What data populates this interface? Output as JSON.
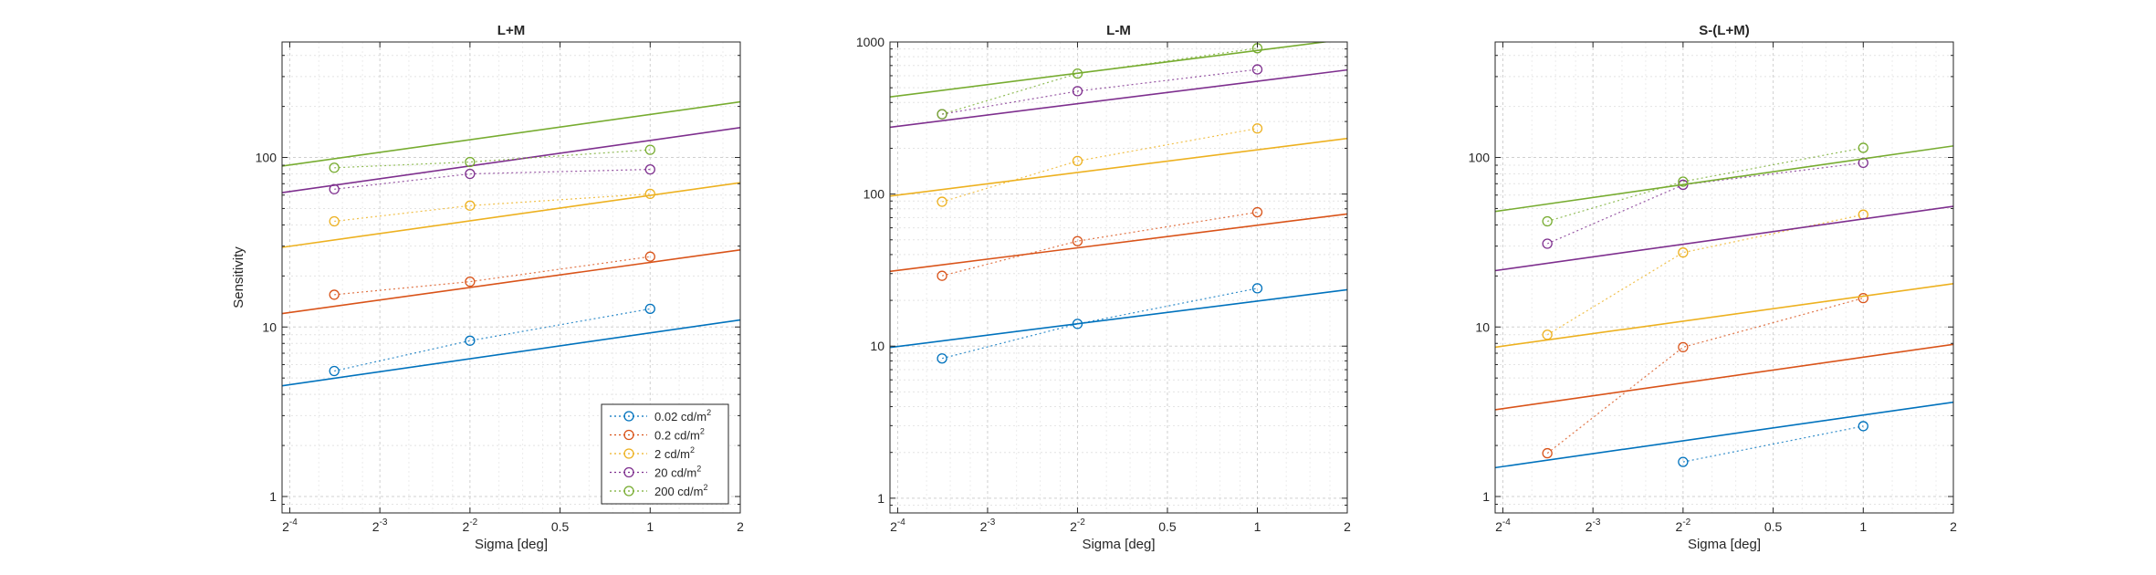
{
  "figure": {
    "colors": [
      "#0072BD",
      "#D95319",
      "#EDB120",
      "#7E2F8E",
      "#77AC30"
    ],
    "xlabel": "Sigma [deg]",
    "ylabel": "Sensitivity",
    "xscale": "log2",
    "yscale": "log10",
    "xlim": [
      0.0589,
      2
    ],
    "x_tick_values": [
      0.0625,
      0.125,
      0.25,
      0.5,
      1,
      2
    ],
    "x_tick_labels": [
      {
        "base": "2",
        "exp": "-4"
      },
      {
        "base": "2",
        "exp": "-3"
      },
      {
        "base": "2",
        "exp": "-2"
      },
      {
        "base": "0.5",
        "exp": ""
      },
      {
        "base": "1",
        "exp": ""
      },
      {
        "base": "2",
        "exp": ""
      }
    ],
    "grid": true,
    "legend": {
      "location": "bottom-right of first panel",
      "entries": [
        {
          "label": "0.02 cd/m",
          "sup": "2"
        },
        {
          "label": "0.2 cd/m",
          "sup": "2"
        },
        {
          "label": "2 cd/m",
          "sup": "2"
        },
        {
          "label": "20 cd/m",
          "sup": "2"
        },
        {
          "label": "200 cd/m",
          "sup": "2"
        }
      ]
    }
  },
  "chart_data": [
    {
      "type": "line",
      "title": "L+M",
      "ylim": [
        0.8,
        480
      ],
      "y_ticks": [
        1,
        10,
        100
      ],
      "y_tick_labels": [
        "1",
        "10",
        "100"
      ],
      "series": [
        {
          "name": "0.02 cd/m2",
          "x": [
            0.088,
            0.25,
            1
          ],
          "y": [
            5.5,
            8.3,
            12.8
          ],
          "fit": [
            4.5,
            11
          ]
        },
        {
          "name": "0.2 cd/m2",
          "x": [
            0.088,
            0.25,
            1
          ],
          "y": [
            15.5,
            18.5,
            26
          ],
          "fit": [
            12,
            28.5
          ]
        },
        {
          "name": "2 cd/m2",
          "x": [
            0.088,
            0.25,
            1
          ],
          "y": [
            42,
            52,
            61
          ],
          "fit": [
            29.5,
            71
          ]
        },
        {
          "name": "20 cd/m2",
          "x": [
            0.088,
            0.25,
            1
          ],
          "y": [
            65,
            80,
            85
          ],
          "fit": [
            62,
            150
          ]
        },
        {
          "name": "200 cd/m2",
          "x": [
            0.088,
            0.25,
            1
          ],
          "y": [
            87,
            94,
            111
          ],
          "fit": [
            89,
            213
          ]
        }
      ]
    },
    {
      "type": "line",
      "title": "L-M",
      "ylim": [
        0.8,
        1000
      ],
      "y_ticks": [
        1,
        10,
        100,
        1000
      ],
      "y_tick_labels": [
        "1",
        "10",
        "100",
        "1000"
      ],
      "series": [
        {
          "name": "0.02 cd/m2",
          "x": [
            0.088,
            0.25,
            1
          ],
          "y": [
            8.3,
            14,
            24
          ],
          "fit": [
            9.8,
            23.5
          ]
        },
        {
          "name": "0.2 cd/m2",
          "x": [
            0.088,
            0.25,
            1
          ],
          "y": [
            29,
            49,
            76
          ],
          "fit": [
            31,
            74
          ]
        },
        {
          "name": "2 cd/m2",
          "x": [
            0.088,
            0.25,
            1
          ],
          "y": [
            89,
            165,
            270
          ],
          "fit": [
            97,
            232
          ]
        },
        {
          "name": "20 cd/m2",
          "x": [
            0.088,
            0.25,
            1
          ],
          "y": [
            335,
            475,
            660
          ],
          "fit": [
            275,
            655
          ]
        },
        {
          "name": "200 cd/m2",
          "x": [
            0.088,
            0.25,
            1
          ],
          "y": [
            335,
            620,
            910
          ],
          "fit": [
            435,
            1045
          ]
        }
      ]
    },
    {
      "type": "line",
      "title": "S-(L+M)",
      "ylim": [
        0.8,
        480
      ],
      "y_ticks": [
        1,
        10,
        100
      ],
      "y_tick_labels": [
        "1",
        "10",
        "100"
      ],
      "series": [
        {
          "name": "0.02 cd/m2",
          "x": [
            0.25,
            1
          ],
          "y": [
            1.6,
            2.6
          ],
          "fit": [
            1.48,
            3.6
          ]
        },
        {
          "name": "0.2 cd/m2",
          "x": [
            0.088,
            0.25,
            1
          ],
          "y": [
            1.8,
            7.6,
            14.8
          ],
          "fit": [
            3.25,
            7.9
          ]
        },
        {
          "name": "2 cd/m2",
          "x": [
            0.088,
            0.25,
            1
          ],
          "y": [
            9,
            27.5,
            46
          ],
          "fit": [
            7.6,
            18
          ]
        },
        {
          "name": "20 cd/m2",
          "x": [
            0.088,
            0.25,
            1
          ],
          "y": [
            31,
            69,
            93
          ],
          "fit": [
            21.5,
            51.5
          ]
        },
        {
          "name": "200 cd/m2",
          "x": [
            0.088,
            0.25,
            1
          ],
          "y": [
            42,
            72,
            114
          ],
          "fit": [
            48,
            117
          ]
        }
      ]
    }
  ]
}
